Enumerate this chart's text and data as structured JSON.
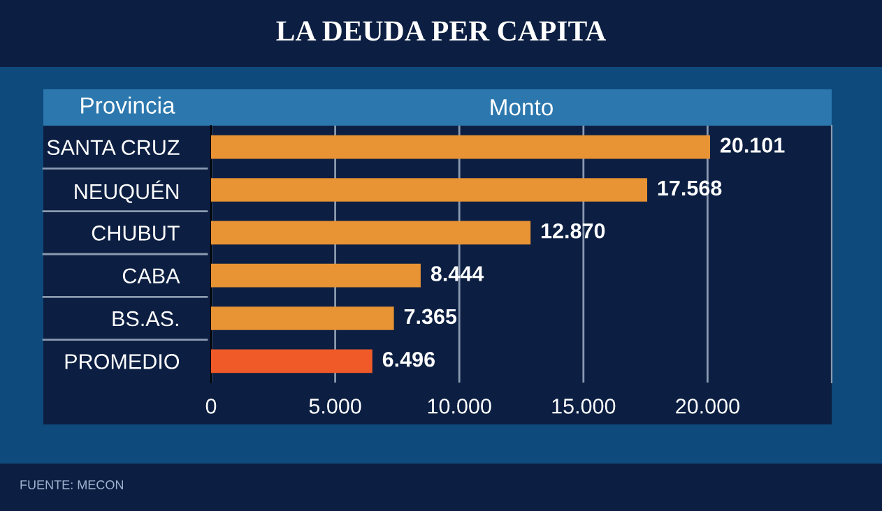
{
  "chart_data": {
    "type": "bar",
    "orientation": "horizontal",
    "title": "LA DEUDA PER CAPITA",
    "xlabel": "Monto",
    "ylabel": "Provincia",
    "categories": [
      "SANTA CRUZ",
      "NEUQUÉN",
      "CHUBUT",
      "CABA",
      "BS.AS.",
      "PROMEDIO"
    ],
    "values": [
      20101,
      17568,
      12870,
      8444,
      7365,
      6496
    ],
    "colors": [
      "#e89334",
      "#e89334",
      "#e89334",
      "#e89334",
      "#e89334",
      "#f05a28"
    ],
    "value_labels": [
      "20.101",
      "17.568",
      "12.870",
      "8.444",
      "7.365",
      "6.496"
    ],
    "xlim": [
      0,
      25000
    ],
    "xticks": [
      {
        "value": 0,
        "label": "0"
      },
      {
        "value": 5000,
        "label": "5.000"
      },
      {
        "value": 10000,
        "label": "10.000"
      },
      {
        "value": 15000,
        "label": "15.000"
      },
      {
        "value": 20000,
        "label": "20.000"
      }
    ],
    "grid": "x",
    "legend": false,
    "annotations": [
      "FUENTE: MECON"
    ]
  }
}
